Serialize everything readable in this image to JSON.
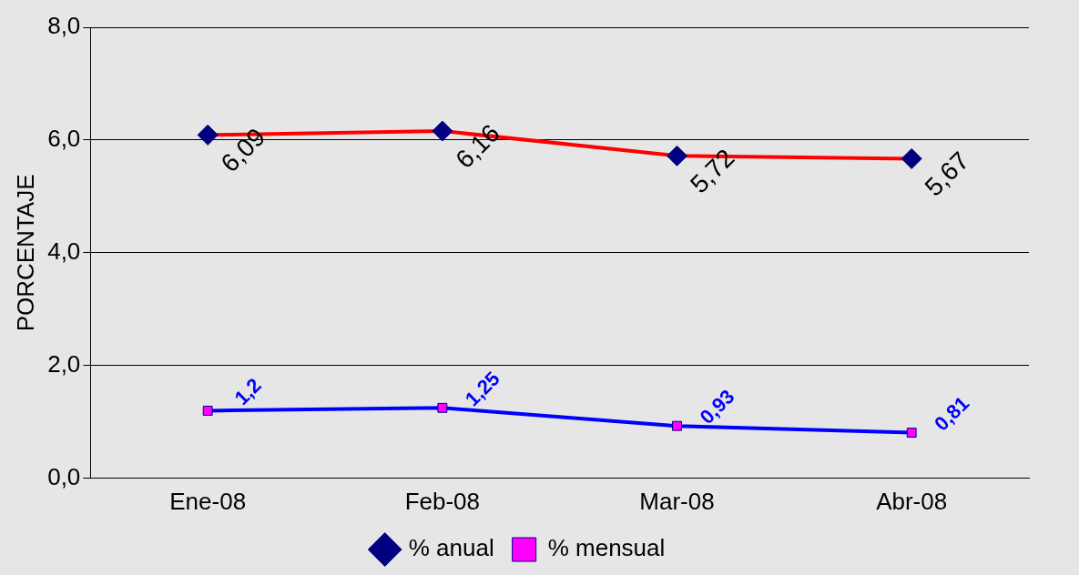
{
  "chart_data": {
    "type": "line",
    "ylabel": "PORCENTAJE",
    "categories": [
      "Ene-08",
      "Feb-08",
      "Mar-08",
      "Abr-08"
    ],
    "series": [
      {
        "name": "% anual",
        "color": "#ff0000",
        "marker": "diamond",
        "values": [
          6.09,
          6.16,
          5.72,
          5.67
        ],
        "value_labels": [
          "6,09",
          "6,16",
          "5,72",
          "5,67"
        ]
      },
      {
        "name": "% mensual",
        "color": "#0000ff",
        "marker": "square",
        "values": [
          1.2,
          1.25,
          0.93,
          0.81
        ],
        "value_labels": [
          "1,2",
          "1,25",
          "0,93",
          "0,81"
        ]
      }
    ],
    "ylim": [
      0,
      8
    ],
    "yticks": [
      {
        "value": 0,
        "label": "0,0"
      },
      {
        "value": 2,
        "label": "2,0"
      },
      {
        "value": 4,
        "label": "4,0"
      },
      {
        "value": 6,
        "label": "6,0"
      },
      {
        "value": 8,
        "label": "8,0"
      }
    ],
    "grid": "y",
    "legend": "bottom"
  }
}
